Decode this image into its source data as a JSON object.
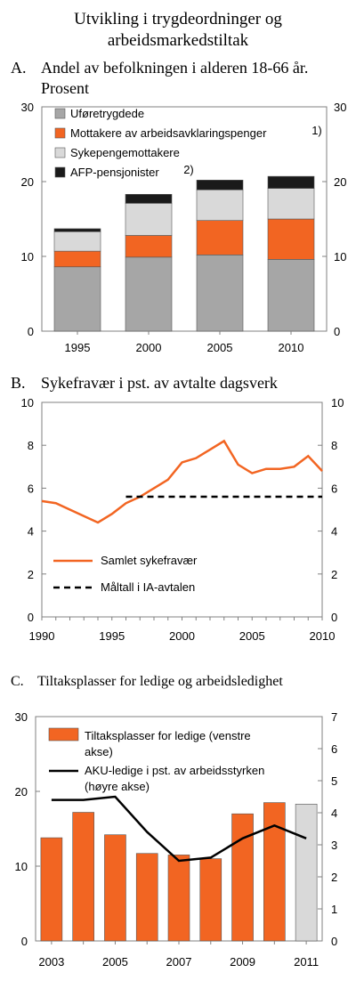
{
  "figure_title_line1": "Utvikling i trygdeordninger og",
  "figure_title_line2": "arbeidsmarkedstiltak",
  "chart_data": [
    {
      "panel": "A.",
      "type": "bar",
      "stacked": true,
      "title_line1": "Andel av befolkningen i alderen 18-66 år.",
      "title_line2": "Prosent",
      "categories": [
        "1995",
        "2000",
        "2005",
        "2010"
      ],
      "series": [
        {
          "name": "Uføretrygdede",
          "values": [
            8.6,
            9.9,
            10.2,
            9.6
          ],
          "color": "#a6a6a6"
        },
        {
          "name": "Mottakere av arbeidsavklaringspenger",
          "note": "1)",
          "values": [
            2.1,
            2.9,
            4.6,
            5.4
          ],
          "color": "#f26522"
        },
        {
          "name": "Sykepengemottakere",
          "values": [
            2.6,
            4.3,
            4.1,
            4.1
          ],
          "color": "#d9d9d9"
        },
        {
          "name": "AFP-pensjonister",
          "note": "2)",
          "values": [
            0.4,
            1.2,
            1.3,
            1.6
          ],
          "color": "#1a1a1a"
        }
      ],
      "ylim": [
        0,
        30
      ],
      "yticks": [
        0,
        10,
        20,
        30
      ],
      "legend_position": "top-left"
    },
    {
      "panel": "B.",
      "type": "line",
      "title": "Sykefravær i pst. av avtalte dagsverk",
      "ylim": [
        0,
        10
      ],
      "yticks": [
        0,
        2,
        4,
        6,
        8,
        10
      ],
      "xlim": [
        1990,
        2010
      ],
      "xticks": [
        1990,
        1995,
        2000,
        2005,
        2010
      ],
      "series": [
        {
          "name": "Samlet sykefravær",
          "color": "#f26522",
          "style": "solid",
          "x": [
            1990,
            1991,
            1992,
            1993,
            1994,
            1995,
            1996,
            1997,
            1998,
            1999,
            2000,
            2001,
            2002,
            2003,
            2004,
            2005,
            2006,
            2007,
            2008,
            2009,
            2010
          ],
          "y": [
            5.4,
            5.3,
            5.0,
            4.7,
            4.4,
            4.8,
            5.3,
            5.6,
            6.0,
            6.4,
            7.2,
            7.4,
            7.8,
            8.2,
            7.1,
            6.7,
            6.9,
            6.9,
            7.0,
            7.5,
            6.8
          ]
        },
        {
          "name": "Måltall i IA-avtalen",
          "color": "#000000",
          "style": "dashed",
          "x": [
            1996,
            2010
          ],
          "y": [
            5.6,
            5.6
          ]
        }
      ],
      "legend_position": "bottom-left"
    },
    {
      "panel": "C.",
      "type": "bar",
      "title": "Tiltaksplasser for ledige og arbeidsledighet",
      "x": [
        2003,
        2004,
        2005,
        2006,
        2007,
        2008,
        2009,
        2010,
        2011
      ],
      "xticks": [
        2003,
        2005,
        2007,
        2009,
        2011
      ],
      "ylim_left": [
        0,
        30
      ],
      "yticks_left": [
        0,
        10,
        20,
        30
      ],
      "ylim_right": [
        0,
        7
      ],
      "yticks_right": [
        0,
        1,
        2,
        3,
        4,
        5,
        6,
        7
      ],
      "series": [
        {
          "name": "Tiltaksplasser for ledige (venstre akse)",
          "kind": "bar",
          "axis": "left",
          "color": "#f26522",
          "last_bar_color": "#d9d9d9",
          "values": [
            13.8,
            17.2,
            14.2,
            11.7,
            11.5,
            11.0,
            17.0,
            18.5,
            18.3
          ]
        },
        {
          "name": "AKU-ledige i pst. av arbeidsstyrken (høyre akse)",
          "kind": "line",
          "axis": "right",
          "color": "#000000",
          "x": [
            2003,
            2004,
            2005,
            2006,
            2007,
            2008,
            2009,
            2010,
            2011
          ],
          "y": [
            4.4,
            4.4,
            4.5,
            3.4,
            2.5,
            2.6,
            3.2,
            3.6,
            3.2
          ]
        }
      ],
      "legend_position": "top-left"
    }
  ]
}
